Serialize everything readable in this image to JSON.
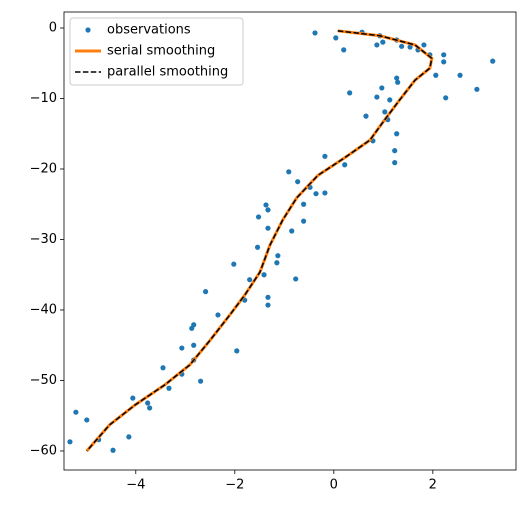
{
  "chart_data": {
    "type": "scatter",
    "xlim": [
      -5.45,
      3.68
    ],
    "ylim": [
      -62.7,
      2.27
    ],
    "xticks": [
      {
        "value": -4,
        "label": "−4"
      },
      {
        "value": -2,
        "label": "−2"
      },
      0,
      2
    ],
    "yticks": [
      0,
      {
        "value": -10,
        "label": "−10"
      },
      {
        "value": -20,
        "label": "−20"
      },
      {
        "value": -30,
        "label": "−30"
      },
      {
        "value": -40,
        "label": "−40"
      },
      {
        "value": -50,
        "label": "−50"
      },
      {
        "value": -60,
        "label": "−60"
      }
    ],
    "legend": "upper left",
    "series": [
      {
        "name": "observations",
        "style": "markers",
        "color": "#1f77b4",
        "x": [
          -0.38,
          0.04,
          0.2,
          0.57,
          0.93,
          0.99,
          0.87,
          1.27,
          1.37,
          1.54,
          1.7,
          1.82,
          1.94,
          2.22,
          2.22,
          2.06,
          2.55,
          3.21,
          2.89,
          2.26,
          0.32,
          1.27,
          1.29,
          0.97,
          0.87,
          1.13,
          1.03,
          1.09,
          0.65,
          0.79,
          1.27,
          1.23,
          1.23,
          -0.18,
          0.22,
          -0.91,
          -0.73,
          -0.18,
          -0.48,
          -0.36,
          -0.61,
          -0.61,
          -0.85,
          -1.37,
          -1.33,
          -1.52,
          -1.33,
          -1.54,
          -1.13,
          -1.15,
          -1.41,
          -0.77,
          -1.7,
          -2.02,
          -1.33,
          -1.33,
          -1.8,
          -2.59,
          -2.83,
          -2.87,
          -2.34,
          -1.96,
          -2.83,
          -3.07,
          -2.83,
          -2.69,
          -3.45,
          -3.07,
          -3.33,
          -4.06,
          -3.76,
          -3.72,
          -5.21,
          -4.99,
          -5.33,
          -4.75,
          -4.14,
          -4.46
        ],
        "values": [
          -0.7,
          -1.4,
          -3.1,
          -0.6,
          -1.1,
          -2.0,
          -2.4,
          -1.7,
          -2.6,
          -2.7,
          -3.1,
          -2.4,
          -3.8,
          -3.8,
          -4.8,
          -6.7,
          -6.7,
          -4.7,
          -8.7,
          -9.9,
          -9.2,
          -7.1,
          -7.7,
          -8.5,
          -9.8,
          -10.2,
          -11.9,
          -13.0,
          -12.5,
          -16.0,
          -15.0,
          -17.4,
          -19.1,
          -18.2,
          -19.4,
          -20.4,
          -21.8,
          -23.4,
          -22.6,
          -23.5,
          -25.0,
          -27.4,
          -28.8,
          -25.1,
          -25.8,
          -26.8,
          -28.4,
          -31.1,
          -32.3,
          -33.3,
          -35.0,
          -35.6,
          -35.7,
          -33.5,
          -38.2,
          -39.3,
          -38.6,
          -37.4,
          -42.1,
          -42.6,
          -40.7,
          -45.8,
          -45.0,
          -45.4,
          -47.1,
          -50.1,
          -48.2,
          -49.1,
          -51.1,
          -52.5,
          -53.2,
          -53.9,
          -54.5,
          -55.6,
          -58.7,
          -58.4,
          -58.0,
          -59.9
        ]
      },
      {
        "name": "serial smoothing",
        "style": "solid",
        "color": "#ff7f0e",
        "x": [
          0.08,
          0.93,
          1.64,
          1.98,
          1.94,
          1.64,
          1.33,
          1.03,
          0.73,
          0.22,
          -0.32,
          -0.75,
          -1.03,
          -1.29,
          -1.49,
          -1.8,
          -2.1,
          -2.5,
          -2.91,
          -3.41,
          -4.02,
          -4.53,
          -4.99
        ],
        "values": [
          -0.4,
          -1.1,
          -2.4,
          -4.3,
          -5.7,
          -7.4,
          -10.2,
          -13.0,
          -15.9,
          -18.4,
          -20.9,
          -24.1,
          -27.2,
          -30.8,
          -34.6,
          -37.9,
          -40.7,
          -44.3,
          -47.8,
          -50.6,
          -53.5,
          -56.3,
          -60.0
        ]
      },
      {
        "name": "parallel smoothing",
        "style": "dashed",
        "color": "#000000",
        "x": [
          0.08,
          0.93,
          1.64,
          1.98,
          1.94,
          1.64,
          1.33,
          1.03,
          0.73,
          0.22,
          -0.32,
          -0.75,
          -1.03,
          -1.29,
          -1.49,
          -1.8,
          -2.1,
          -2.5,
          -2.91,
          -3.41,
          -4.02,
          -4.53,
          -4.99
        ],
        "values": [
          -0.4,
          -1.1,
          -2.4,
          -4.3,
          -5.7,
          -7.4,
          -10.2,
          -13.0,
          -15.9,
          -18.4,
          -20.9,
          -24.1,
          -27.2,
          -30.8,
          -34.6,
          -37.9,
          -40.7,
          -44.3,
          -47.8,
          -50.6,
          -53.5,
          -56.3,
          -60.0
        ]
      }
    ]
  }
}
